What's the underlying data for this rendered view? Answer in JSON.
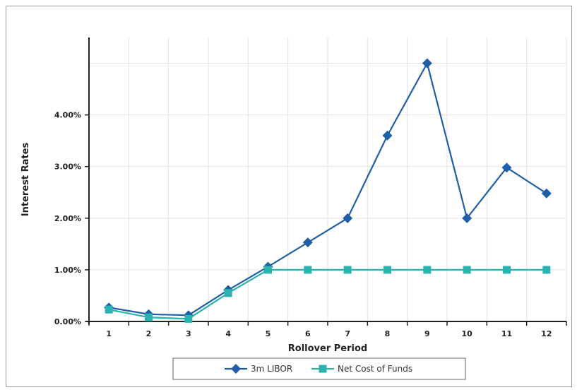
{
  "chart_data": {
    "type": "line",
    "xlabel": "Rollover Period",
    "ylabel": "Interest Rates",
    "x": [
      1,
      2,
      3,
      4,
      5,
      6,
      7,
      8,
      9,
      10,
      11,
      12
    ],
    "ylim": [
      0,
      5.5
    ],
    "y_ticks": [
      "0.00%",
      "1.00%",
      "2.00%",
      "3.00%",
      "4.00%"
    ],
    "grid": true,
    "legend_position": "bottom",
    "series": [
      {
        "name": "3m LIBOR",
        "color": "#1f5fa8",
        "marker": "diamond",
        "values": [
          0.27,
          0.14,
          0.12,
          0.61,
          1.06,
          1.53,
          2.0,
          3.6,
          5.0,
          2.0,
          2.98,
          2.48
        ]
      },
      {
        "name": "Net Cost of Funds",
        "color": "#2ab3b0",
        "marker": "square",
        "values": [
          0.23,
          0.08,
          0.05,
          0.55,
          1.0,
          1.0,
          1.0,
          1.0,
          1.0,
          1.0,
          1.0,
          1.0
        ]
      }
    ]
  }
}
